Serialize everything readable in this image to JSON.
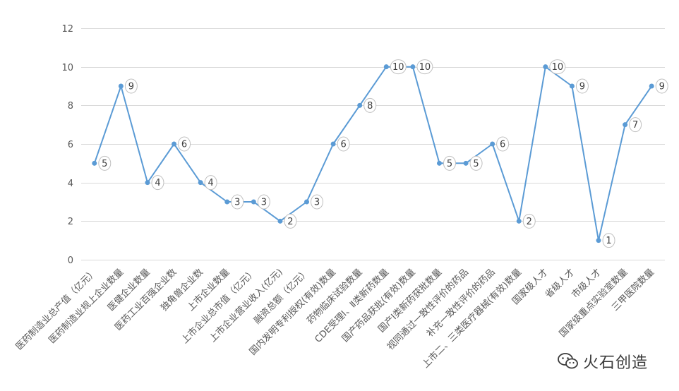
{
  "chart_data": {
    "type": "line",
    "title": "",
    "xlabel": "",
    "ylabel": "",
    "ylim": [
      0,
      12
    ],
    "yticks": [
      0,
      2,
      4,
      6,
      8,
      10,
      12
    ],
    "grid": true,
    "legend": "none",
    "categories": [
      "医药制造业总产值（亿元）",
      "医药制造业规上企业数量",
      "医健企业数量",
      "医药工业百强企业数",
      "独角兽企业数",
      "上市企业数量",
      "上市企业总市值（亿元）",
      "上市企业营业收入(亿元)",
      "融资总额（亿元）",
      "国内发明专利授权(有效)数量",
      "药物临床试验数量",
      "CDE受理Ⅰ、Ⅱ类新药数量",
      "国产药品获批(有效)数量",
      "国产Ⅰ类新药获批数量",
      "视同通过一致性评价的药品",
      "补充一致性评价的药品",
      "上市二、三类医疗器械(有效)数量",
      "国家级人才",
      "省级人才",
      "市级人才",
      "国家级重点实验室数量",
      "三甲医院数量"
    ],
    "series": [
      {
        "values": [
          5,
          9,
          4,
          6,
          4,
          3,
          3,
          2,
          3,
          6,
          8,
          10,
          10,
          5,
          5,
          6,
          2,
          10,
          9,
          1,
          7,
          9
        ]
      }
    ],
    "colors": {
      "line": "#5b9bd5",
      "marker": "#5b9bd5"
    }
  },
  "watermark": {
    "icon": "wechat-icon",
    "text": "火石创造"
  }
}
